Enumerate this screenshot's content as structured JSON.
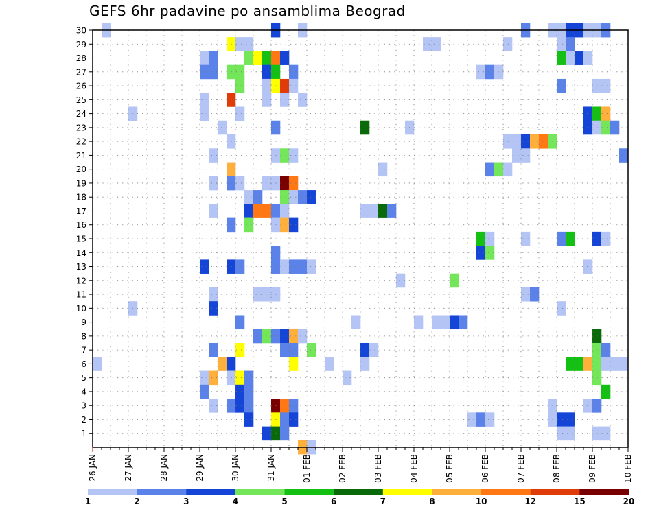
{
  "chart_data": {
    "type": "heatmap",
    "title": "GEFS 6hr padavine po ansamblima Beograd",
    "xlabel": "",
    "ylabel": "",
    "x_tick_labels": [
      "26 JAN",
      "27 JAN",
      "28 JAN",
      "29 JAN",
      "30 JAN",
      "31 JAN",
      "01 FEB",
      "02 FEB",
      "03 FEB",
      "04 FEB",
      "05 FEB",
      "06 FEB",
      "07 FEB",
      "08 FEB",
      "09 FEB",
      "10 FEB"
    ],
    "y_tick_labels": [
      "1",
      "2",
      "3",
      "4",
      "5",
      "6",
      "7",
      "8",
      "9",
      "10",
      "11",
      "12",
      "13",
      "14",
      "15",
      "16",
      "17",
      "18",
      "19",
      "20",
      "21",
      "22",
      "23",
      "24",
      "25",
      "26",
      "27",
      "28",
      "29",
      "30"
    ],
    "x_unit": "6-hour steps from 26 JAN 00Z",
    "ylim": [
      0,
      30
    ],
    "xlim": [
      0,
      60
    ],
    "grid": true,
    "color_scale": {
      "breaks": [
        "1",
        "2",
        "3",
        "4",
        "5",
        "6",
        "7",
        "8",
        "10",
        "12",
        "15",
        "20"
      ],
      "colors": [
        "#b4c5f5",
        "#5b82e8",
        "#1445d6",
        "#74e65a",
        "#14c014",
        "#0a6a0a",
        "#ffff00",
        "#ffb03c",
        "#ff7814",
        "#e03c0a",
        "#780000"
      ]
    },
    "cells": [
      [
        1,
        30,
        0
      ],
      [
        20,
        30,
        2
      ],
      [
        23,
        30,
        0
      ],
      [
        48,
        30,
        1
      ],
      [
        51,
        30,
        0
      ],
      [
        52,
        30,
        0
      ],
      [
        53,
        30,
        2
      ],
      [
        54,
        30,
        2
      ],
      [
        55,
        30,
        0
      ],
      [
        56,
        30,
        0
      ],
      [
        57,
        30,
        1
      ],
      [
        15,
        29,
        6
      ],
      [
        16,
        29,
        0
      ],
      [
        17,
        29,
        0
      ],
      [
        37,
        29,
        0
      ],
      [
        38,
        29,
        0
      ],
      [
        46,
        29,
        0
      ],
      [
        52,
        29,
        0
      ],
      [
        53,
        29,
        1
      ],
      [
        12,
        28,
        0
      ],
      [
        13,
        28,
        1
      ],
      [
        17,
        28,
        3
      ],
      [
        18,
        28,
        6
      ],
      [
        19,
        28,
        4
      ],
      [
        20,
        28,
        8
      ],
      [
        21,
        28,
        2
      ],
      [
        52,
        28,
        4
      ],
      [
        53,
        28,
        0
      ],
      [
        54,
        28,
        2
      ],
      [
        55,
        28,
        0
      ],
      [
        12,
        27,
        1
      ],
      [
        13,
        27,
        1
      ],
      [
        15,
        27,
        3
      ],
      [
        16,
        27,
        3
      ],
      [
        19,
        27,
        2
      ],
      [
        20,
        27,
        4
      ],
      [
        22,
        27,
        1
      ],
      [
        43,
        27,
        0
      ],
      [
        44,
        27,
        1
      ],
      [
        45,
        27,
        0
      ],
      [
        16,
        26,
        3
      ],
      [
        19,
        26,
        0
      ],
      [
        20,
        26,
        6
      ],
      [
        21,
        26,
        9
      ],
      [
        22,
        26,
        0
      ],
      [
        52,
        26,
        1
      ],
      [
        56,
        26,
        0
      ],
      [
        57,
        26,
        0
      ],
      [
        12,
        25,
        0
      ],
      [
        15,
        25,
        9
      ],
      [
        19,
        25,
        0
      ],
      [
        21,
        25,
        0
      ],
      [
        23,
        25,
        0
      ],
      [
        4,
        24,
        0
      ],
      [
        12,
        24,
        0
      ],
      [
        16,
        24,
        0
      ],
      [
        55,
        24,
        2
      ],
      [
        56,
        24,
        4
      ],
      [
        57,
        24,
        7
      ],
      [
        14,
        23,
        0
      ],
      [
        20,
        23,
        1
      ],
      [
        30,
        23,
        5
      ],
      [
        35,
        23,
        0
      ],
      [
        55,
        23,
        2
      ],
      [
        56,
        23,
        0
      ],
      [
        57,
        23,
        3
      ],
      [
        58,
        23,
        1
      ],
      [
        15,
        22,
        0
      ],
      [
        46,
        22,
        0
      ],
      [
        47,
        22,
        0
      ],
      [
        48,
        22,
        2
      ],
      [
        49,
        22,
        7
      ],
      [
        50,
        22,
        8
      ],
      [
        51,
        22,
        3
      ],
      [
        13,
        21,
        0
      ],
      [
        20,
        21,
        0
      ],
      [
        21,
        21,
        3
      ],
      [
        22,
        21,
        0
      ],
      [
        47,
        21,
        0
      ],
      [
        48,
        21,
        0
      ],
      [
        59,
        21,
        1
      ],
      [
        15,
        20,
        7
      ],
      [
        32,
        20,
        0
      ],
      [
        44,
        20,
        1
      ],
      [
        45,
        20,
        3
      ],
      [
        46,
        20,
        0
      ],
      [
        13,
        19,
        0
      ],
      [
        15,
        19,
        1
      ],
      [
        16,
        19,
        0
      ],
      [
        19,
        19,
        0
      ],
      [
        20,
        19,
        0
      ],
      [
        21,
        19,
        10
      ],
      [
        22,
        19,
        8
      ],
      [
        17,
        18,
        0
      ],
      [
        18,
        18,
        1
      ],
      [
        21,
        18,
        3
      ],
      [
        22,
        18,
        0
      ],
      [
        23,
        18,
        1
      ],
      [
        24,
        18,
        2
      ],
      [
        13,
        17,
        0
      ],
      [
        17,
        17,
        2
      ],
      [
        18,
        17,
        8
      ],
      [
        19,
        17,
        8
      ],
      [
        20,
        17,
        1
      ],
      [
        21,
        17,
        0
      ],
      [
        30,
        17,
        0
      ],
      [
        31,
        17,
        0
      ],
      [
        32,
        17,
        5
      ],
      [
        33,
        17,
        1
      ],
      [
        15,
        16,
        1
      ],
      [
        17,
        16,
        3
      ],
      [
        20,
        16,
        0
      ],
      [
        21,
        16,
        7
      ],
      [
        22,
        16,
        2
      ],
      [
        43,
        15,
        4
      ],
      [
        44,
        15,
        0
      ],
      [
        48,
        15,
        0
      ],
      [
        52,
        15,
        1
      ],
      [
        53,
        15,
        4
      ],
      [
        56,
        15,
        2
      ],
      [
        57,
        15,
        0
      ],
      [
        20,
        14,
        1
      ],
      [
        43,
        14,
        2
      ],
      [
        44,
        14,
        3
      ],
      [
        12,
        13,
        2
      ],
      [
        15,
        13,
        2
      ],
      [
        16,
        13,
        1
      ],
      [
        20,
        13,
        1
      ],
      [
        21,
        13,
        0
      ],
      [
        22,
        13,
        1
      ],
      [
        23,
        13,
        1
      ],
      [
        24,
        13,
        0
      ],
      [
        55,
        13,
        0
      ],
      [
        34,
        12,
        0
      ],
      [
        40,
        12,
        3
      ],
      [
        13,
        11,
        0
      ],
      [
        18,
        11,
        0
      ],
      [
        19,
        11,
        0
      ],
      [
        20,
        11,
        0
      ],
      [
        48,
        11,
        0
      ],
      [
        49,
        11,
        1
      ],
      [
        4,
        10,
        0
      ],
      [
        13,
        10,
        2
      ],
      [
        52,
        10,
        0
      ],
      [
        16,
        9,
        1
      ],
      [
        29,
        9,
        0
      ],
      [
        36,
        9,
        0
      ],
      [
        38,
        9,
        0
      ],
      [
        39,
        9,
        0
      ],
      [
        40,
        9,
        2
      ],
      [
        41,
        9,
        1
      ],
      [
        18,
        8,
        1
      ],
      [
        19,
        8,
        3
      ],
      [
        20,
        8,
        1
      ],
      [
        21,
        8,
        2
      ],
      [
        22,
        8,
        7
      ],
      [
        23,
        8,
        0
      ],
      [
        56,
        8,
        5
      ],
      [
        13,
        7,
        1
      ],
      [
        16,
        7,
        6
      ],
      [
        21,
        7,
        1
      ],
      [
        22,
        7,
        1
      ],
      [
        24,
        7,
        3
      ],
      [
        30,
        7,
        2
      ],
      [
        31,
        7,
        0
      ],
      [
        56,
        7,
        3
      ],
      [
        57,
        7,
        1
      ],
      [
        0,
        6,
        0
      ],
      [
        14,
        6,
        7
      ],
      [
        15,
        6,
        2
      ],
      [
        22,
        6,
        6
      ],
      [
        26,
        6,
        0
      ],
      [
        30,
        6,
        0
      ],
      [
        53,
        6,
        4
      ],
      [
        54,
        6,
        4
      ],
      [
        55,
        6,
        7
      ],
      [
        56,
        6,
        3
      ],
      [
        57,
        6,
        0
      ],
      [
        58,
        6,
        0
      ],
      [
        59,
        6,
        0
      ],
      [
        12,
        5,
        0
      ],
      [
        13,
        5,
        7
      ],
      [
        15,
        5,
        0
      ],
      [
        16,
        5,
        6
      ],
      [
        17,
        5,
        1
      ],
      [
        28,
        5,
        0
      ],
      [
        56,
        5,
        3
      ],
      [
        12,
        4,
        1
      ],
      [
        16,
        4,
        2
      ],
      [
        17,
        4,
        1
      ],
      [
        57,
        4,
        4
      ],
      [
        13,
        3,
        0
      ],
      [
        15,
        3,
        1
      ],
      [
        16,
        3,
        2
      ],
      [
        17,
        3,
        1
      ],
      [
        20,
        3,
        10
      ],
      [
        21,
        3,
        8
      ],
      [
        22,
        3,
        1
      ],
      [
        51,
        3,
        0
      ],
      [
        55,
        3,
        0
      ],
      [
        56,
        3,
        1
      ],
      [
        17,
        2,
        2
      ],
      [
        20,
        2,
        6
      ],
      [
        21,
        2,
        1
      ],
      [
        22,
        2,
        2
      ],
      [
        42,
        2,
        0
      ],
      [
        43,
        2,
        1
      ],
      [
        44,
        2,
        0
      ],
      [
        51,
        2,
        0
      ],
      [
        52,
        2,
        2
      ],
      [
        53,
        2,
        2
      ],
      [
        19,
        1,
        2
      ],
      [
        20,
        1,
        5
      ],
      [
        21,
        1,
        1
      ],
      [
        52,
        1,
        0
      ],
      [
        53,
        1,
        0
      ],
      [
        56,
        1,
        0
      ],
      [
        57,
        1,
        0
      ],
      [
        23,
        0,
        7
      ],
      [
        24,
        0,
        0
      ]
    ]
  }
}
